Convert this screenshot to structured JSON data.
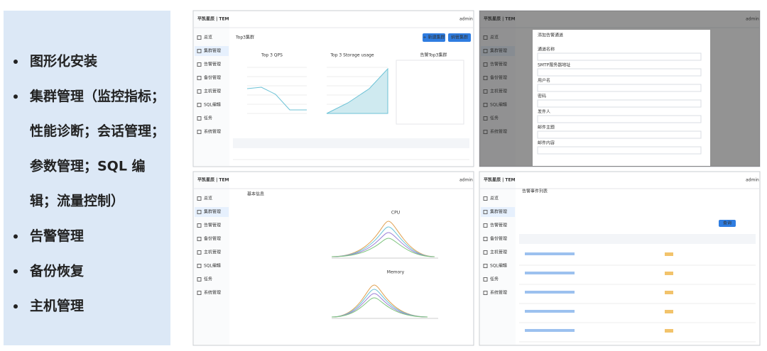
{
  "slide": {
    "bullets": [
      {
        "lines": [
          "图形化安装"
        ]
      },
      {
        "lines": [
          "集群管理（监控指标；",
          "性能诊断；会话管理；",
          "参数管理；SQL 编",
          "辑；流量控制）"
        ]
      },
      {
        "lines": [
          "告警管理"
        ]
      },
      {
        "lines": [
          "备份恢复"
        ]
      },
      {
        "lines": [
          "主机管理"
        ]
      }
    ]
  },
  "screens": [
    {
      "brand": "平凯星辰 | TEM",
      "user": "admin",
      "menu": [
        "总览",
        "集群管理",
        "告警管理",
        "备份管理",
        "主机管理",
        "SQL编辑",
        "任务",
        "系统管理"
      ],
      "title": "Top3集群",
      "buttons": [
        "+ 新建集群",
        "纳管集群"
      ],
      "panels": [
        "Top 3 QPS",
        "Top 3 Storage usage",
        "告警Top3集群"
      ]
    },
    {
      "brand": "平凯星辰 | TEM",
      "user": "admin",
      "menu": [
        "总览",
        "集群管理",
        "告警管理",
        "备份管理",
        "主机管理",
        "SQL编辑",
        "任务",
        "系统管理"
      ],
      "title": "添加告警通道",
      "fields": [
        "通道名称",
        "SMTP服务器地址",
        "用户名",
        "密码",
        "发件人",
        "邮件主题",
        "邮件内容"
      ]
    },
    {
      "brand": "平凯星辰 | TEM",
      "user": "admin",
      "menu": [
        "总览",
        "集群管理",
        "告警管理",
        "备份管理",
        "主机管理",
        "SQL编辑",
        "任务",
        "系统管理"
      ],
      "title": "基本信息",
      "panels": [
        "CPU",
        "Memory"
      ]
    },
    {
      "brand": "平凯星辰 | TEM",
      "user": "admin",
      "menu": [
        "总览",
        "集群管理",
        "告警管理",
        "备份管理",
        "主机管理",
        "SQL编辑",
        "任务",
        "系统管理"
      ],
      "title": "告警事件列表",
      "buttons": [
        "查询"
      ]
    }
  ]
}
